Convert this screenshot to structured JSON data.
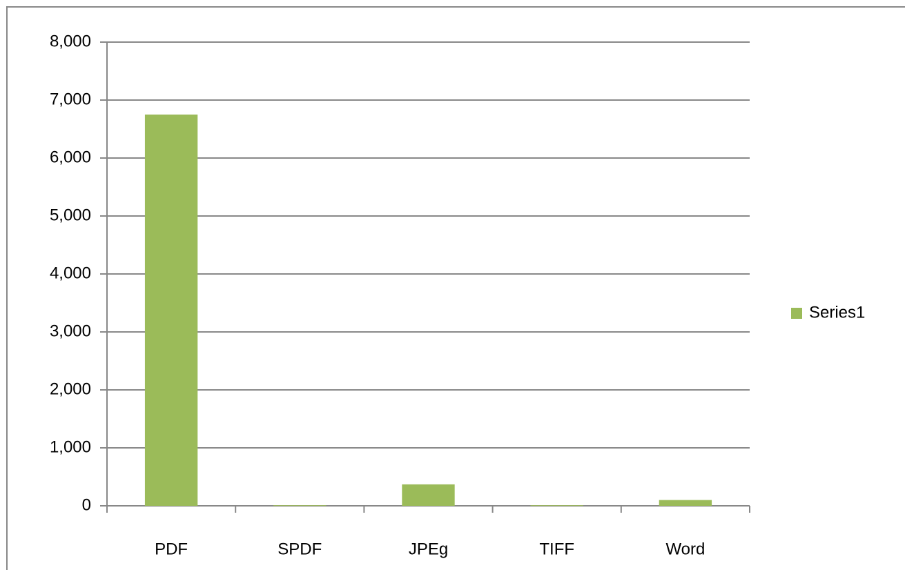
{
  "chart_data": {
    "type": "bar",
    "categories": [
      "PDF",
      "SPDF",
      "JPEg",
      "TIFF",
      "Word"
    ],
    "series": [
      {
        "name": "Series1",
        "color": "#9bbb59",
        "values": [
          6750,
          10,
          370,
          10,
          100
        ]
      }
    ],
    "ylim": [
      0,
      8000
    ],
    "yticks": [
      0,
      {
        "value": 1000,
        "label": "1,000"
      },
      {
        "value": 2000,
        "label": "2,000"
      },
      {
        "value": 3000,
        "label": "3,000"
      },
      {
        "value": 4000,
        "label": "4,000"
      },
      {
        "value": 5000,
        "label": "5,000"
      },
      {
        "value": 6000,
        "label": "6,000"
      },
      {
        "value": 7000,
        "label": "7,000"
      },
      {
        "value": 8000,
        "label": "8,000"
      }
    ],
    "grid": true,
    "legend": "right"
  }
}
